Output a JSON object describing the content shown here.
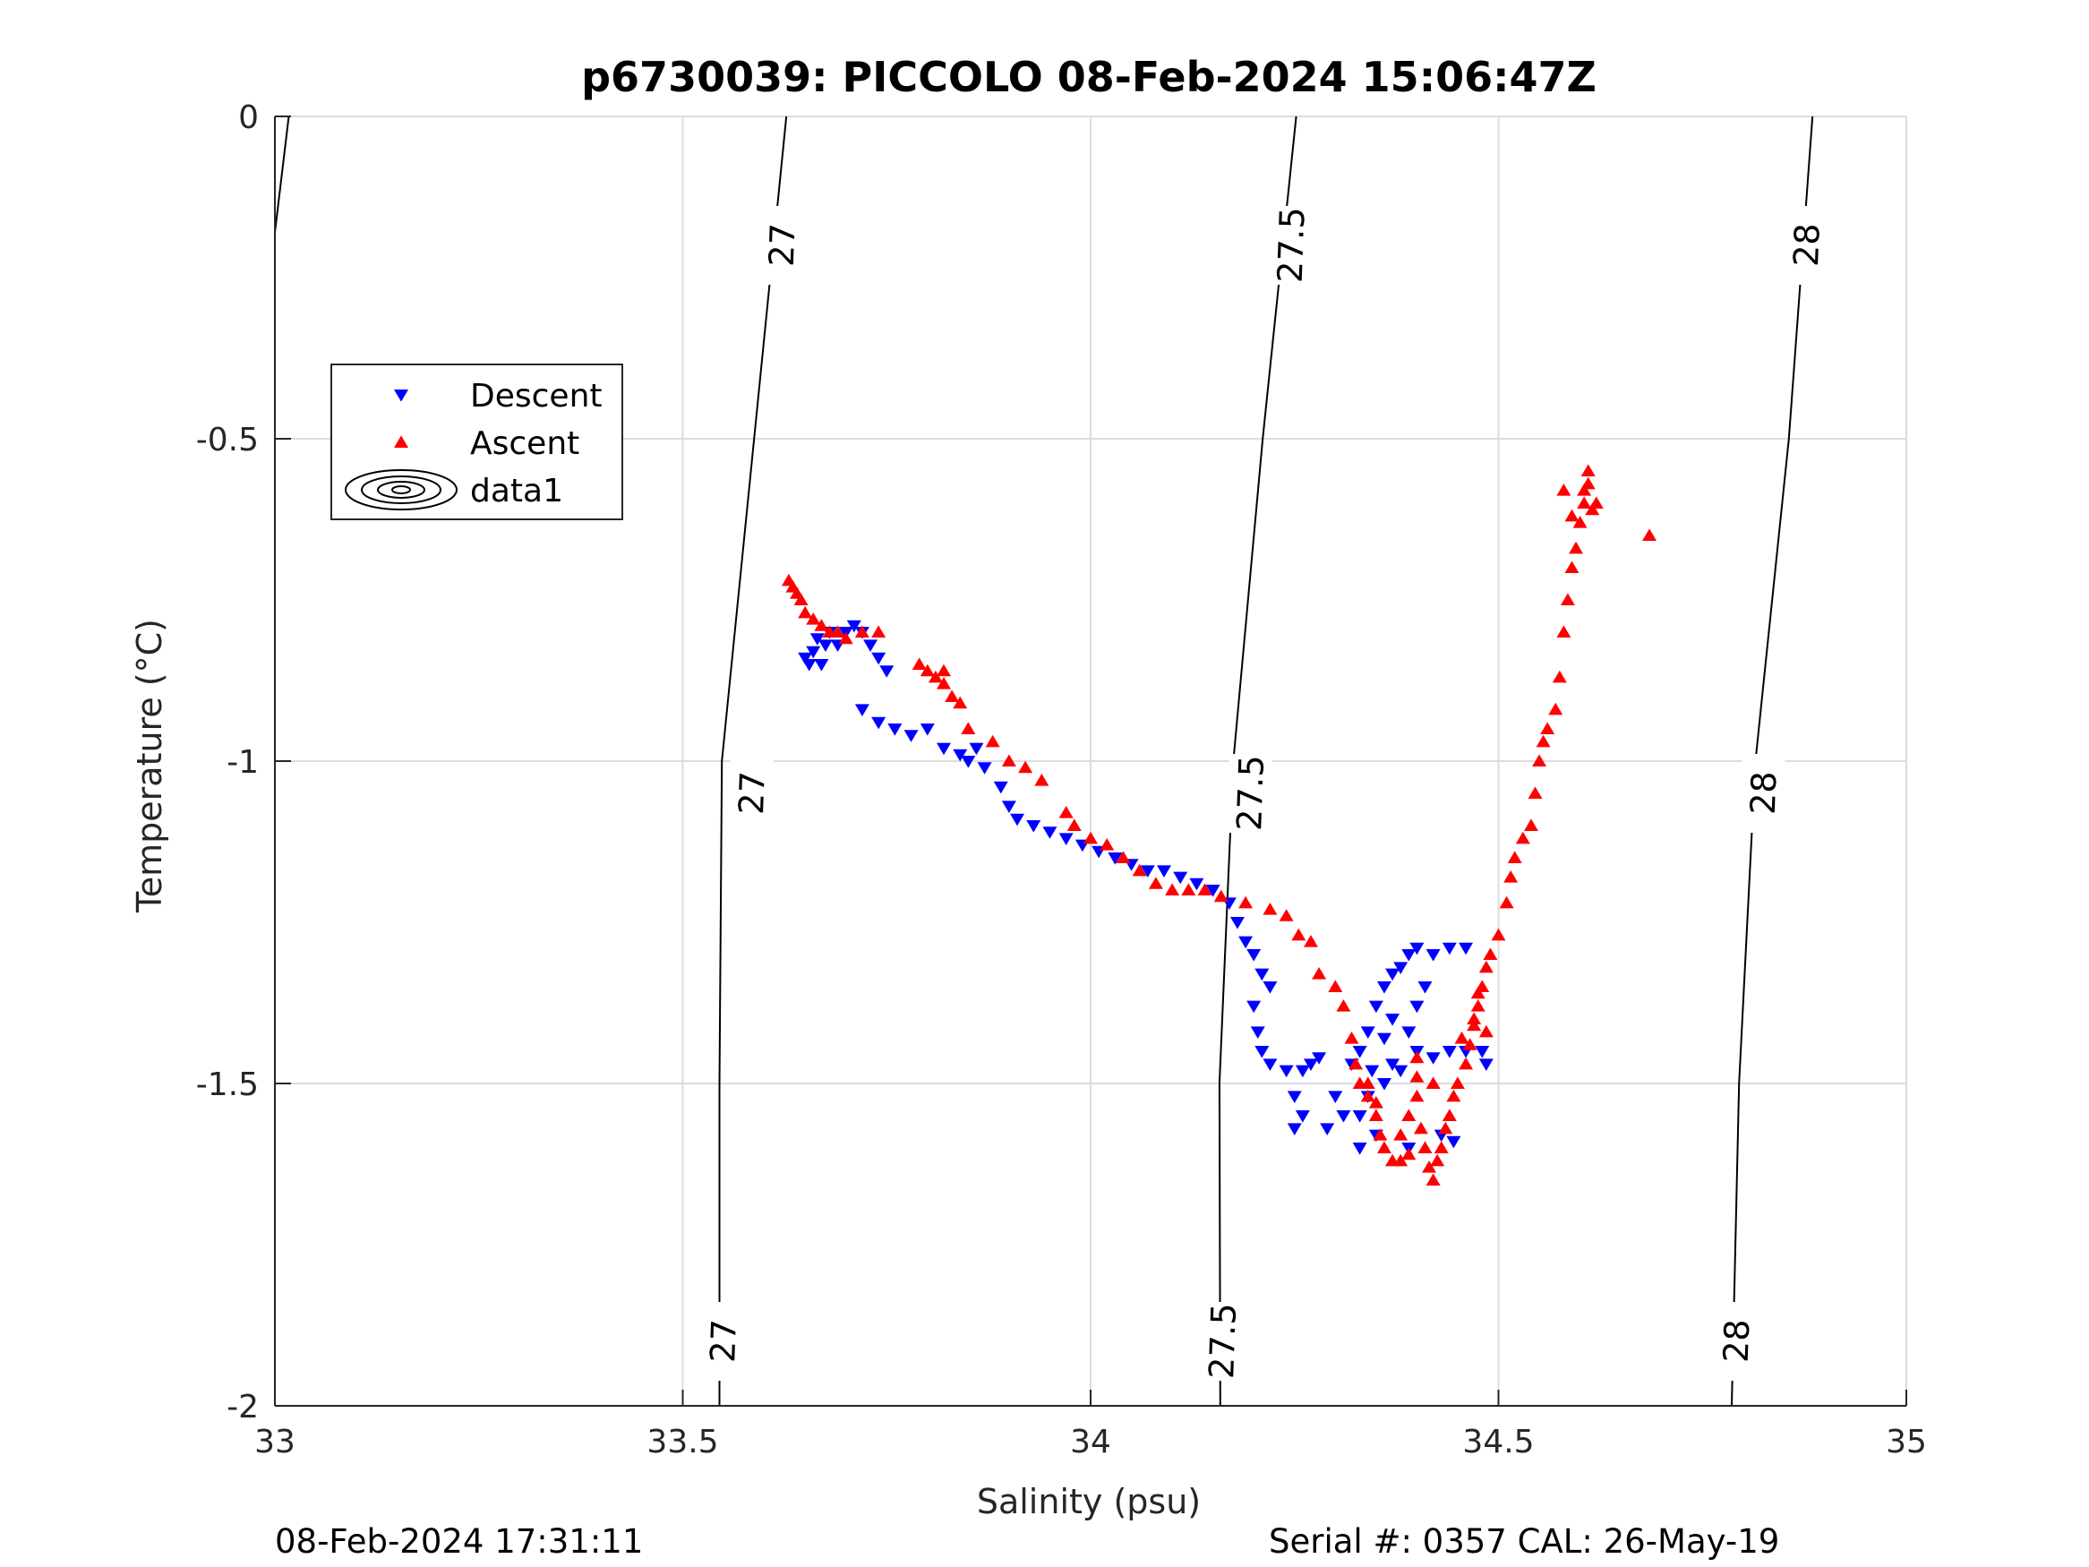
{
  "chart_data": {
    "type": "scatter",
    "title": "p6730039: PICCOLO 08-Feb-2024 15:06:47Z",
    "xlabel": "Salinity (psu)",
    "ylabel": "Temperature (°C)",
    "xlim": [
      33,
      35
    ],
    "ylim": [
      -2,
      0
    ],
    "xticks": [
      "33",
      "33.5",
      "34",
      "34.5",
      "35"
    ],
    "yticks": [
      "0",
      "-0.5",
      "-1",
      "-1.5",
      "-2"
    ],
    "grid": true,
    "legend_position": "upper-left",
    "legend": [
      "Descent",
      "Ascent",
      "data1"
    ],
    "footer_left": "08-Feb-2024 17:31:11",
    "footer_right": "Serial #: 0357  CAL: 26-May-19",
    "colors": {
      "descent": "#0000ff",
      "ascent": "#ff0000",
      "contour": "#000000",
      "grid": "#dcdcdc"
    },
    "contours": [
      {
        "label": "27",
        "points": [
          [
            33.627,
            0
          ],
          [
            33.548,
            -1.0
          ],
          [
            33.545,
            -1.5
          ],
          [
            33.545,
            -2
          ]
        ],
        "label_points": [
          [
            33.622,
            -0.2
          ],
          [
            33.585,
            -1.05
          ],
          [
            33.55,
            -1.9
          ]
        ]
      },
      {
        "label": "27.5",
        "points": [
          [
            34.252,
            0
          ],
          [
            34.211,
            -0.5
          ],
          [
            34.175,
            -1.0
          ],
          [
            34.158,
            -1.5
          ],
          [
            34.159,
            -2
          ]
        ],
        "label_points": [
          [
            34.246,
            -0.2
          ],
          [
            34.196,
            -1.05
          ],
          [
            34.162,
            -1.9
          ]
        ]
      },
      {
        "label": "28",
        "points": [
          [
            34.885,
            0
          ],
          [
            34.856,
            -0.5
          ],
          [
            34.815,
            -1.0
          ],
          [
            34.795,
            -1.5
          ],
          [
            34.786,
            -2
          ]
        ],
        "label_points": [
          [
            34.878,
            -0.2
          ],
          [
            34.825,
            -1.05
          ],
          [
            34.792,
            -1.9
          ]
        ]
      },
      {
        "label": "",
        "points": [
          [
            33.017,
            0
          ],
          [
            33.0,
            -0.18
          ]
        ],
        "label_points": []
      }
    ],
    "series": [
      {
        "name": "Descent",
        "marker": "triangle-down",
        "points": [
          [
            33.65,
            -0.84
          ],
          [
            33.655,
            -0.85
          ],
          [
            33.66,
            -0.83
          ],
          [
            33.665,
            -0.81
          ],
          [
            33.67,
            -0.85
          ],
          [
            33.675,
            -0.82
          ],
          [
            33.68,
            -0.8
          ],
          [
            33.69,
            -0.82
          ],
          [
            33.7,
            -0.8
          ],
          [
            33.71,
            -0.79
          ],
          [
            33.72,
            -0.8
          ],
          [
            33.73,
            -0.82
          ],
          [
            33.74,
            -0.84
          ],
          [
            33.75,
            -0.86
          ],
          [
            33.72,
            -0.92
          ],
          [
            33.74,
            -0.94
          ],
          [
            33.76,
            -0.95
          ],
          [
            33.78,
            -0.96
          ],
          [
            33.8,
            -0.95
          ],
          [
            33.82,
            -0.98
          ],
          [
            33.84,
            -0.99
          ],
          [
            33.86,
            -0.98
          ],
          [
            33.85,
            -1.0
          ],
          [
            33.87,
            -1.01
          ],
          [
            33.89,
            -1.04
          ],
          [
            33.9,
            -1.07
          ],
          [
            33.91,
            -1.09
          ],
          [
            33.93,
            -1.1
          ],
          [
            33.95,
            -1.11
          ],
          [
            33.97,
            -1.12
          ],
          [
            33.99,
            -1.13
          ],
          [
            34.01,
            -1.14
          ],
          [
            34.03,
            -1.15
          ],
          [
            34.05,
            -1.16
          ],
          [
            34.07,
            -1.17
          ],
          [
            34.09,
            -1.17
          ],
          [
            34.11,
            -1.18
          ],
          [
            34.13,
            -1.19
          ],
          [
            34.15,
            -1.2
          ],
          [
            34.17,
            -1.22
          ],
          [
            34.18,
            -1.25
          ],
          [
            34.19,
            -1.28
          ],
          [
            34.2,
            -1.3
          ],
          [
            34.21,
            -1.33
          ],
          [
            34.22,
            -1.35
          ],
          [
            34.2,
            -1.38
          ],
          [
            34.205,
            -1.42
          ],
          [
            34.21,
            -1.45
          ],
          [
            34.22,
            -1.47
          ],
          [
            34.24,
            -1.48
          ],
          [
            34.26,
            -1.48
          ],
          [
            34.27,
            -1.47
          ],
          [
            34.28,
            -1.46
          ],
          [
            34.25,
            -1.52
          ],
          [
            34.26,
            -1.55
          ],
          [
            34.25,
            -1.57
          ],
          [
            34.29,
            -1.57
          ],
          [
            34.31,
            -1.55
          ],
          [
            34.3,
            -1.52
          ],
          [
            34.32,
            -1.47
          ],
          [
            34.33,
            -1.45
          ],
          [
            34.34,
            -1.42
          ],
          [
            34.35,
            -1.38
          ],
          [
            34.36,
            -1.35
          ],
          [
            34.37,
            -1.33
          ],
          [
            34.38,
            -1.32
          ],
          [
            34.39,
            -1.3
          ],
          [
            34.4,
            -1.29
          ],
          [
            34.42,
            -1.3
          ],
          [
            34.44,
            -1.29
          ],
          [
            34.46,
            -1.29
          ],
          [
            34.41,
            -1.35
          ],
          [
            34.4,
            -1.38
          ],
          [
            34.39,
            -1.42
          ],
          [
            34.4,
            -1.45
          ],
          [
            34.42,
            -1.46
          ],
          [
            34.44,
            -1.45
          ],
          [
            34.46,
            -1.45
          ],
          [
            34.48,
            -1.45
          ],
          [
            34.485,
            -1.47
          ],
          [
            34.38,
            -1.48
          ],
          [
            34.37,
            -1.47
          ],
          [
            34.36,
            -1.5
          ],
          [
            34.34,
            -1.52
          ],
          [
            34.33,
            -1.55
          ],
          [
            34.35,
            -1.58
          ],
          [
            34.33,
            -1.6
          ],
          [
            34.39,
            -1.6
          ],
          [
            34.43,
            -1.58
          ],
          [
            34.445,
            -1.59
          ],
          [
            34.36,
            -1.43
          ],
          [
            34.37,
            -1.4
          ],
          [
            34.345,
            -1.48
          ]
        ]
      },
      {
        "name": "Ascent",
        "marker": "triangle-up",
        "points": [
          [
            33.63,
            -0.72
          ],
          [
            33.635,
            -0.73
          ],
          [
            33.64,
            -0.74
          ],
          [
            33.645,
            -0.75
          ],
          [
            33.65,
            -0.77
          ],
          [
            33.66,
            -0.78
          ],
          [
            33.67,
            -0.79
          ],
          [
            33.68,
            -0.8
          ],
          [
            33.69,
            -0.8
          ],
          [
            33.7,
            -0.81
          ],
          [
            33.72,
            -0.8
          ],
          [
            33.74,
            -0.8
          ],
          [
            33.79,
            -0.85
          ],
          [
            33.8,
            -0.86
          ],
          [
            33.81,
            -0.87
          ],
          [
            33.82,
            -0.88
          ],
          [
            33.83,
            -0.9
          ],
          [
            33.84,
            -0.91
          ],
          [
            33.82,
            -0.86
          ],
          [
            33.85,
            -0.95
          ],
          [
            33.88,
            -0.97
          ],
          [
            33.9,
            -1.0
          ],
          [
            33.92,
            -1.01
          ],
          [
            33.94,
            -1.03
          ],
          [
            33.97,
            -1.08
          ],
          [
            33.98,
            -1.1
          ],
          [
            34.0,
            -1.12
          ],
          [
            34.02,
            -1.13
          ],
          [
            34.04,
            -1.15
          ],
          [
            34.06,
            -1.17
          ],
          [
            34.08,
            -1.19
          ],
          [
            34.1,
            -1.2
          ],
          [
            34.12,
            -1.2
          ],
          [
            34.14,
            -1.2
          ],
          [
            34.16,
            -1.21
          ],
          [
            34.19,
            -1.22
          ],
          [
            34.22,
            -1.23
          ],
          [
            34.24,
            -1.24
          ],
          [
            34.255,
            -1.27
          ],
          [
            34.27,
            -1.28
          ],
          [
            34.28,
            -1.33
          ],
          [
            34.3,
            -1.35
          ],
          [
            34.31,
            -1.38
          ],
          [
            34.32,
            -1.43
          ],
          [
            34.325,
            -1.47
          ],
          [
            34.33,
            -1.5
          ],
          [
            34.34,
            -1.52
          ],
          [
            34.35,
            -1.55
          ],
          [
            34.355,
            -1.58
          ],
          [
            34.36,
            -1.6
          ],
          [
            34.37,
            -1.62
          ],
          [
            34.38,
            -1.62
          ],
          [
            34.39,
            -1.61
          ],
          [
            34.38,
            -1.58
          ],
          [
            34.39,
            -1.55
          ],
          [
            34.4,
            -1.52
          ],
          [
            34.4,
            -1.49
          ],
          [
            34.4,
            -1.46
          ],
          [
            34.41,
            -1.6
          ],
          [
            34.415,
            -1.63
          ],
          [
            34.42,
            -1.65
          ],
          [
            34.425,
            -1.62
          ],
          [
            34.43,
            -1.6
          ],
          [
            34.435,
            -1.57
          ],
          [
            34.44,
            -1.55
          ],
          [
            34.445,
            -1.52
          ],
          [
            34.45,
            -1.5
          ],
          [
            34.46,
            -1.47
          ],
          [
            34.465,
            -1.44
          ],
          [
            34.47,
            -1.41
          ],
          [
            34.475,
            -1.38
          ],
          [
            34.48,
            -1.35
          ],
          [
            34.485,
            -1.32
          ],
          [
            34.49,
            -1.3
          ],
          [
            34.5,
            -1.27
          ],
          [
            34.51,
            -1.22
          ],
          [
            34.515,
            -1.18
          ],
          [
            34.52,
            -1.15
          ],
          [
            34.53,
            -1.12
          ],
          [
            34.54,
            -1.1
          ],
          [
            34.545,
            -1.05
          ],
          [
            34.55,
            -1.0
          ],
          [
            34.555,
            -0.97
          ],
          [
            34.56,
            -0.95
          ],
          [
            34.57,
            -0.92
          ],
          [
            34.575,
            -0.87
          ],
          [
            34.58,
            -0.8
          ],
          [
            34.585,
            -0.75
          ],
          [
            34.59,
            -0.7
          ],
          [
            34.595,
            -0.67
          ],
          [
            34.6,
            -0.63
          ],
          [
            34.605,
            -0.6
          ],
          [
            34.61,
            -0.57
          ],
          [
            34.61,
            -0.55
          ],
          [
            34.605,
            -0.58
          ],
          [
            34.615,
            -0.61
          ],
          [
            34.62,
            -0.6
          ],
          [
            34.58,
            -0.58
          ],
          [
            34.59,
            -0.62
          ],
          [
            34.685,
            -0.65
          ],
          [
            34.475,
            -1.36
          ],
          [
            34.47,
            -1.4
          ],
          [
            34.485,
            -1.42
          ],
          [
            34.455,
            -1.43
          ],
          [
            34.42,
            -1.5
          ],
          [
            34.405,
            -1.57
          ],
          [
            34.35,
            -1.53
          ],
          [
            34.34,
            -1.5
          ]
        ]
      }
    ]
  }
}
